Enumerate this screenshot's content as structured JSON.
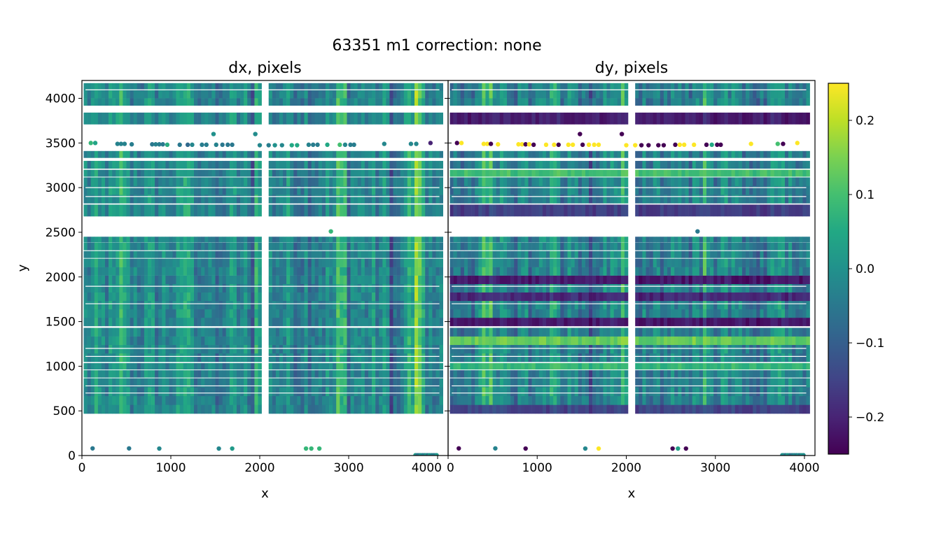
{
  "chart_data": {
    "type": "scatter",
    "title": "63351 m1  correction: none",
    "xlim": [
      0,
      4118
    ],
    "ylim": [
      0,
      4200
    ],
    "x_ticks": [
      0,
      1000,
      2000,
      3000,
      4000
    ],
    "y_ticks": [
      0,
      500,
      1000,
      1500,
      2000,
      2500,
      3000,
      3500,
      4000
    ],
    "chip_gap_x": [
      2030,
      2075
    ],
    "colorbar": {
      "colormap": "viridis",
      "range": [
        -0.25,
        0.25
      ],
      "ticks": [
        0.2,
        0.1,
        0.0,
        -0.1,
        -0.2
      ],
      "tick_labels": [
        "0.2",
        "0.1",
        "0.0",
        "−0.1",
        "−0.2"
      ]
    },
    "bands_y": [
      [
        3920,
        4170
      ],
      [
        3710,
        3840
      ],
      [
        3335,
        3410
      ],
      [
        3215,
        3300
      ],
      [
        3125,
        3200
      ],
      [
        2825,
        3115
      ],
      [
        2680,
        2810
      ],
      [
        2390,
        2450
      ],
      [
        2300,
        2385
      ],
      [
        2215,
        2290
      ],
      [
        1450,
        2205
      ],
      [
        1050,
        1430
      ],
      [
        965,
        1035
      ],
      [
        875,
        955
      ],
      [
        470,
        865
      ]
    ],
    "thin_gaps_y": [
      4095,
      3000,
      2900,
      1895,
      1700,
      1200,
      1110,
      780,
      700
    ],
    "panels": [
      {
        "title": "dx, pixels",
        "xlabel": "x",
        "ylabel": "y",
        "mean": -0.02,
        "column_spread": 0.06,
        "bright_columns_x": [
          430,
          1150,
          1960,
          2900,
          3700,
          3780
        ],
        "dark_columns_x": [
          1500,
          1880,
          3500,
          3950
        ],
        "row_anomalies": []
      },
      {
        "title": "dy, pixels",
        "xlabel": "x",
        "ylabel": "",
        "mean": -0.03,
        "column_spread": 0.06,
        "bright_columns_x": [
          420,
          1180,
          1960,
          2900,
          3700
        ],
        "dark_columns_x": [
          1600,
          3500
        ],
        "row_anomalies": [
          {
            "y": 3730,
            "value": -0.24
          },
          {
            "y": 3140,
            "value": 0.12
          },
          {
            "y": 2700,
            "value": -0.18
          },
          {
            "y": 1960,
            "value": -0.25
          },
          {
            "y": 1800,
            "value": -0.22
          },
          {
            "y": 1530,
            "value": -0.2
          },
          {
            "y": 1470,
            "value": -0.25
          },
          {
            "y": 1280,
            "value": 0.16
          },
          {
            "y": 1000,
            "value": 0.1
          },
          {
            "y": 500,
            "value": -0.17
          }
        ]
      }
    ],
    "isolated_points": [
      {
        "x": 100,
        "y": 3500,
        "dx": 0.08,
        "dy": -0.25
      },
      {
        "x": 150,
        "y": 3500,
        "dx": 0.04,
        "dy": 0.25
      },
      {
        "x": 400,
        "y": 3490,
        "dx": -0.03,
        "dy": 0.25
      },
      {
        "x": 440,
        "y": 3490,
        "dx": -0.03,
        "dy": 0.25
      },
      {
        "x": 480,
        "y": 3490,
        "dx": -0.03,
        "dy": -0.25
      },
      {
        "x": 560,
        "y": 3485,
        "dx": -0.04,
        "dy": 0.25
      },
      {
        "x": 790,
        "y": 3485,
        "dx": -0.05,
        "dy": 0.25
      },
      {
        "x": 830,
        "y": 3485,
        "dx": -0.03,
        "dy": 0.25
      },
      {
        "x": 870,
        "y": 3485,
        "dx": -0.04,
        "dy": -0.25
      },
      {
        "x": 910,
        "y": 3485,
        "dx": -0.05,
        "dy": 0.25
      },
      {
        "x": 960,
        "y": 3480,
        "dx": 0.06,
        "dy": -0.25
      },
      {
        "x": 1100,
        "y": 3480,
        "dx": -0.05,
        "dy": 0.25
      },
      {
        "x": 1190,
        "y": 3480,
        "dx": -0.08,
        "dy": 0.25
      },
      {
        "x": 1240,
        "y": 3480,
        "dx": -0.02,
        "dy": -0.25
      },
      {
        "x": 1350,
        "y": 3480,
        "dx": -0.04,
        "dy": 0.25
      },
      {
        "x": 1400,
        "y": 3480,
        "dx": -0.04,
        "dy": 0.25
      },
      {
        "x": 1480,
        "y": 3600,
        "dx": 0.0,
        "dy": -0.25
      },
      {
        "x": 1510,
        "y": 3480,
        "dx": -0.03,
        "dy": -0.25
      },
      {
        "x": 1580,
        "y": 3480,
        "dx": -0.05,
        "dy": 0.25
      },
      {
        "x": 1640,
        "y": 3480,
        "dx": -0.05,
        "dy": 0.25
      },
      {
        "x": 1690,
        "y": 3480,
        "dx": -0.05,
        "dy": 0.25
      },
      {
        "x": 1950,
        "y": 3600,
        "dx": -0.01,
        "dy": -0.25
      },
      {
        "x": 2000,
        "y": 3475,
        "dx": -0.02,
        "dy": 0.25
      },
      {
        "x": 2100,
        "y": 3475,
        "dx": -0.04,
        "dy": 0.25
      },
      {
        "x": 2170,
        "y": 3475,
        "dx": 0.0,
        "dy": -0.25
      },
      {
        "x": 2250,
        "y": 3475,
        "dx": -0.02,
        "dy": -0.25
      },
      {
        "x": 2360,
        "y": 3475,
        "dx": 0.05,
        "dy": -0.25
      },
      {
        "x": 2420,
        "y": 3475,
        "dx": 0.05,
        "dy": -0.25
      },
      {
        "x": 2550,
        "y": 3480,
        "dx": -0.03,
        "dy": -0.25
      },
      {
        "x": 2600,
        "y": 3480,
        "dx": -0.04,
        "dy": 0.25
      },
      {
        "x": 2650,
        "y": 3480,
        "dx": -0.04,
        "dy": 0.25
      },
      {
        "x": 2760,
        "y": 3480,
        "dx": 0.05,
        "dy": 0.25
      },
      {
        "x": 2900,
        "y": 3480,
        "dx": 0.1,
        "dy": -0.25
      },
      {
        "x": 2960,
        "y": 3480,
        "dx": -0.02,
        "dy": 0.05
      },
      {
        "x": 3020,
        "y": 3480,
        "dx": -0.04,
        "dy": -0.25
      },
      {
        "x": 3060,
        "y": 3480,
        "dx": -0.04,
        "dy": -0.25
      },
      {
        "x": 3400,
        "y": 3490,
        "dx": -0.02,
        "dy": 0.25
      },
      {
        "x": 3700,
        "y": 3490,
        "dx": -0.02,
        "dy": 0.1
      },
      {
        "x": 3760,
        "y": 3490,
        "dx": -0.02,
        "dy": -0.25
      },
      {
        "x": 3920,
        "y": 3500,
        "dx": -0.2,
        "dy": 0.25
      },
      {
        "x": 2800,
        "y": 2510,
        "dx": 0.08,
        "dy": -0.05
      },
      {
        "x": 120,
        "y": 80,
        "dx": -0.05,
        "dy": -0.25
      },
      {
        "x": 530,
        "y": 80,
        "dx": -0.05,
        "dy": -0.03
      },
      {
        "x": 870,
        "y": 78,
        "dx": -0.02,
        "dy": -0.25
      },
      {
        "x": 1540,
        "y": 78,
        "dx": -0.02,
        "dy": -0.02
      },
      {
        "x": 1690,
        "y": 78,
        "dx": 0.02,
        "dy": 0.25
      },
      {
        "x": 2520,
        "y": 78,
        "dx": 0.08,
        "dy": -0.25
      },
      {
        "x": 2580,
        "y": 78,
        "dx": 0.08,
        "dy": 0.03
      },
      {
        "x": 2670,
        "y": 78,
        "dx": 0.08,
        "dy": -0.25
      }
    ],
    "bottom_cluster": {
      "x_range": [
        3750,
        4000
      ],
      "y": 5,
      "value": -0.02
    }
  }
}
